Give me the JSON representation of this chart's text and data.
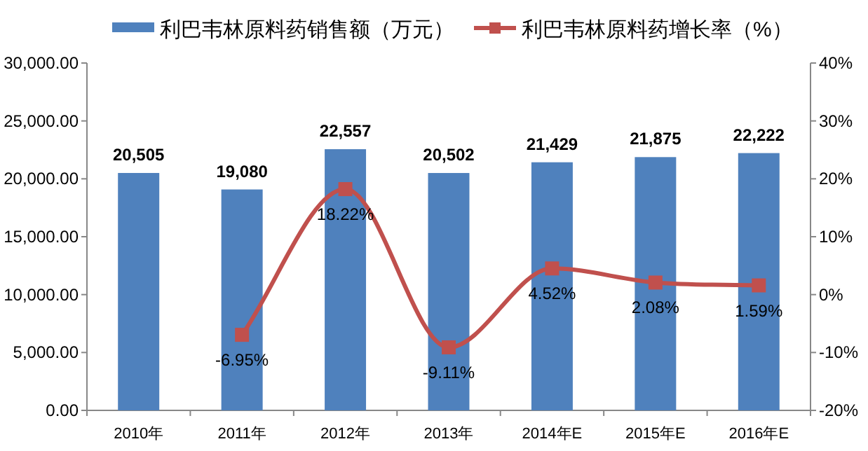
{
  "chart_data": {
    "type": "bar",
    "categories": [
      "2010年",
      "2011年",
      "2012年",
      "2013年",
      "2014年E",
      "2015年E",
      "2016年E"
    ],
    "series": [
      {
        "name": "利巴韦林原料药销售额（万元）",
        "color": "#4f81bd",
        "values": [
          20505,
          19080,
          22557,
          20502,
          21429,
          21875,
          22222
        ],
        "value_labels": [
          "20,505",
          "19,080",
          "22,557",
          "20,502",
          "21,429",
          "21,875",
          "22,222"
        ]
      },
      {
        "name": "利巴韦林原料药增长率（%）",
        "type": "line",
        "axis": "y2",
        "color": "#c0504d",
        "marker": "square",
        "values": [
          null,
          -6.95,
          18.22,
          -9.11,
          4.52,
          2.08,
          1.59
        ],
        "value_labels": [
          null,
          "-6.95%",
          "18.22%",
          "-9.11%",
          "4.52%",
          "2.08%",
          "1.59%"
        ]
      }
    ],
    "ylim": [
      0,
      30000
    ],
    "yticks": [
      {
        "value": 0,
        "label": "0.00"
      },
      {
        "value": 5000,
        "label": "5,000.00"
      },
      {
        "value": 10000,
        "label": "10,000.00"
      },
      {
        "value": 15000,
        "label": "15,000.00"
      },
      {
        "value": 20000,
        "label": "20,000.00"
      },
      {
        "value": 25000,
        "label": "25,000.00"
      },
      {
        "value": 30000,
        "label": "30,000.00"
      }
    ],
    "y2lim": [
      -20,
      40
    ],
    "y2ticks": [
      {
        "value": -20,
        "label": "-20%"
      },
      {
        "value": -10,
        "label": "-10%"
      },
      {
        "value": 0,
        "label": "0%"
      },
      {
        "value": 10,
        "label": "10%"
      },
      {
        "value": 20,
        "label": "20%"
      },
      {
        "value": 30,
        "label": "30%"
      },
      {
        "value": 40,
        "label": "40%"
      }
    ],
    "grid": false,
    "legend": "top"
  }
}
